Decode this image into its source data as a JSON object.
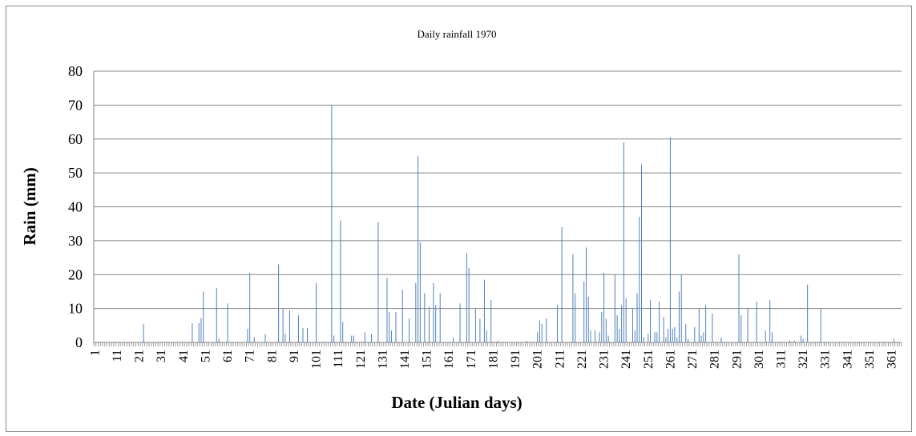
{
  "chart_data": {
    "type": "bar",
    "title": "Daily  rainfall 1970",
    "y_label": "Rain (mm)",
    "x_label": "Date (Julian days)",
    "color": "#4f81bd",
    "grid": true,
    "ylim": [
      0,
      80
    ],
    "yticks": [
      0,
      10,
      20,
      30,
      40,
      50,
      60,
      70,
      80
    ],
    "categories": [
      "1",
      null,
      null,
      null,
      null,
      null,
      null,
      null,
      null,
      null,
      "11",
      null,
      null,
      null,
      null,
      null,
      null,
      null,
      null,
      null,
      "21",
      null,
      null,
      null,
      null,
      null,
      null,
      null,
      null,
      null,
      "31",
      null,
      null,
      null,
      null,
      null,
      null,
      null,
      null,
      null,
      "41",
      null,
      null,
      null,
      null,
      null,
      null,
      null,
      null,
      null,
      "51",
      null,
      null,
      null,
      null,
      null,
      null,
      null,
      null,
      null,
      "61",
      null,
      null,
      null,
      null,
      null,
      null,
      null,
      null,
      null,
      "71",
      null,
      null,
      null,
      null,
      null,
      null,
      null,
      null,
      null,
      "81",
      null,
      null,
      null,
      null,
      null,
      null,
      null,
      null,
      null,
      "91",
      null,
      null,
      null,
      null,
      null,
      null,
      null,
      null,
      null,
      "101",
      null,
      null,
      null,
      null,
      null,
      null,
      null,
      null,
      null,
      "111",
      null,
      null,
      null,
      null,
      null,
      null,
      null,
      null,
      null,
      "121",
      null,
      null,
      null,
      null,
      null,
      null,
      null,
      null,
      null,
      "131",
      null,
      null,
      null,
      null,
      null,
      null,
      null,
      null,
      null,
      "141",
      null,
      null,
      null,
      null,
      null,
      null,
      null,
      null,
      null,
      "151",
      null,
      null,
      null,
      null,
      null,
      null,
      null,
      null,
      null,
      "161",
      null,
      null,
      null,
      null,
      null,
      null,
      null,
      null,
      null,
      "171",
      null,
      null,
      null,
      null,
      null,
      null,
      null,
      null,
      null,
      "181",
      null,
      null,
      null,
      null,
      null,
      null,
      null,
      null,
      null,
      "191",
      null,
      null,
      null,
      null,
      null,
      null,
      null,
      null,
      null,
      "201",
      null,
      null,
      null,
      null,
      null,
      null,
      null,
      null,
      null,
      "211",
      null,
      null,
      null,
      null,
      null,
      null,
      null,
      null,
      null,
      "221",
      null,
      null,
      null,
      null,
      null,
      null,
      null,
      null,
      null,
      "231",
      null,
      null,
      null,
      null,
      null,
      null,
      null,
      null,
      null,
      "241",
      null,
      null,
      null,
      null,
      null,
      null,
      null,
      null,
      null,
      "251",
      null,
      null,
      null,
      null,
      null,
      null,
      null,
      null,
      null,
      "261",
      null,
      null,
      null,
      null,
      null,
      null,
      null,
      null,
      null,
      "271",
      null,
      null,
      null,
      null,
      null,
      null,
      null,
      null,
      null,
      "281",
      null,
      null,
      null,
      null,
      null,
      null,
      null,
      null,
      null,
      "291",
      null,
      null,
      null,
      null,
      null,
      null,
      null,
      null,
      null,
      "301",
      null,
      null,
      null,
      null,
      null,
      null,
      null,
      null,
      null,
      "311",
      null,
      null,
      null,
      null,
      null,
      null,
      null,
      null,
      null,
      "321",
      null,
      null,
      null,
      null,
      null,
      null,
      null,
      null,
      null,
      "331",
      null,
      null,
      null,
      null,
      null,
      null,
      null,
      null,
      null,
      "341",
      null,
      null,
      null,
      null,
      null,
      null,
      null,
      null,
      null,
      "351",
      null,
      null,
      null,
      null,
      null,
      null,
      null,
      null,
      null,
      "361",
      null,
      null,
      null,
      null
    ],
    "values": [
      0,
      0,
      0,
      0,
      0,
      0,
      0,
      0,
      0,
      0,
      0,
      0,
      0,
      0,
      0,
      0,
      0,
      0,
      0,
      0,
      0,
      0,
      5.4,
      0,
      0,
      0,
      0,
      0,
      0,
      0,
      0,
      0,
      0,
      0,
      0,
      0,
      0,
      0,
      0,
      0,
      0,
      0,
      0,
      0,
      5.7,
      0,
      0,
      5.7,
      7.2,
      15,
      0,
      0,
      0,
      0,
      0,
      16,
      1,
      0,
      0,
      0,
      11.5,
      0,
      0,
      0,
      0,
      0,
      0,
      0,
      0,
      4,
      20.5,
      0,
      1.5,
      0,
      0,
      0,
      0,
      2.5,
      0,
      0,
      0,
      0,
      0,
      23,
      0,
      10,
      2.5,
      0,
      9.5,
      0,
      0,
      0,
      8,
      0,
      4.2,
      0,
      4.2,
      0,
      0,
      0,
      17.5,
      0,
      0,
      0,
      0,
      0,
      0,
      70,
      2,
      0,
      0,
      36,
      6,
      0,
      0,
      0,
      2,
      2,
      0,
      0,
      0,
      0,
      3,
      0,
      0,
      2.5,
      0,
      0,
      35.5,
      0,
      0,
      0,
      19,
      9,
      3.5,
      0,
      9,
      0,
      0,
      15.5,
      0,
      0,
      7,
      0,
      0,
      17.5,
      55,
      29.5,
      0,
      14.5,
      0,
      10.5,
      0,
      17.5,
      11,
      0,
      14.5,
      0,
      0,
      0,
      0,
      0,
      1.5,
      0,
      0,
      11.5,
      0,
      0,
      26.5,
      22,
      0,
      0,
      10,
      0,
      7,
      0,
      18.5,
      3.5,
      0,
      12.5,
      0,
      0,
      0.5,
      0,
      0,
      0,
      0,
      0,
      0,
      0,
      0,
      0,
      0,
      0,
      0,
      0.5,
      0,
      0,
      0,
      0,
      3,
      6.5,
      5.5,
      0,
      7,
      0,
      0,
      0,
      0,
      11,
      0,
      34,
      0,
      0,
      0,
      0,
      26,
      14.5,
      0,
      0,
      0,
      18,
      28,
      13.5,
      3.5,
      0,
      3.5,
      0,
      3,
      9,
      20.5,
      7,
      2,
      0,
      0,
      20,
      8,
      4,
      11,
      59,
      13,
      0,
      0,
      10,
      3.5,
      14.5,
      37,
      52.5,
      1.5,
      0,
      2.5,
      12.5,
      0,
      3,
      3,
      12,
      0,
      7.5,
      1.5,
      4,
      60.5,
      4,
      4.5,
      1.5,
      15,
      20,
      0,
      5.5,
      1,
      0,
      0,
      4.5,
      0,
      10,
      2,
      3,
      11,
      0,
      0,
      8.5,
      0,
      0,
      0,
      1.5,
      0,
      0,
      0,
      0,
      0,
      0,
      0,
      26,
      8,
      0,
      0,
      10,
      0,
      0,
      0,
      12,
      0,
      0,
      0,
      3.5,
      0,
      12.5,
      3,
      0,
      0,
      0,
      0,
      0,
      0,
      0,
      0.5,
      0,
      0.5,
      0,
      0,
      2,
      1,
      0,
      17,
      0,
      0,
      0,
      0,
      0,
      10,
      0,
      0,
      0,
      0,
      0,
      0,
      0,
      0,
      0,
      0,
      0,
      0,
      0,
      0,
      0,
      0,
      0,
      0,
      0,
      0,
      0,
      0,
      0,
      0,
      0,
      0,
      0,
      0,
      0,
      0,
      0,
      0,
      1,
      0,
      0,
      0
    ]
  }
}
